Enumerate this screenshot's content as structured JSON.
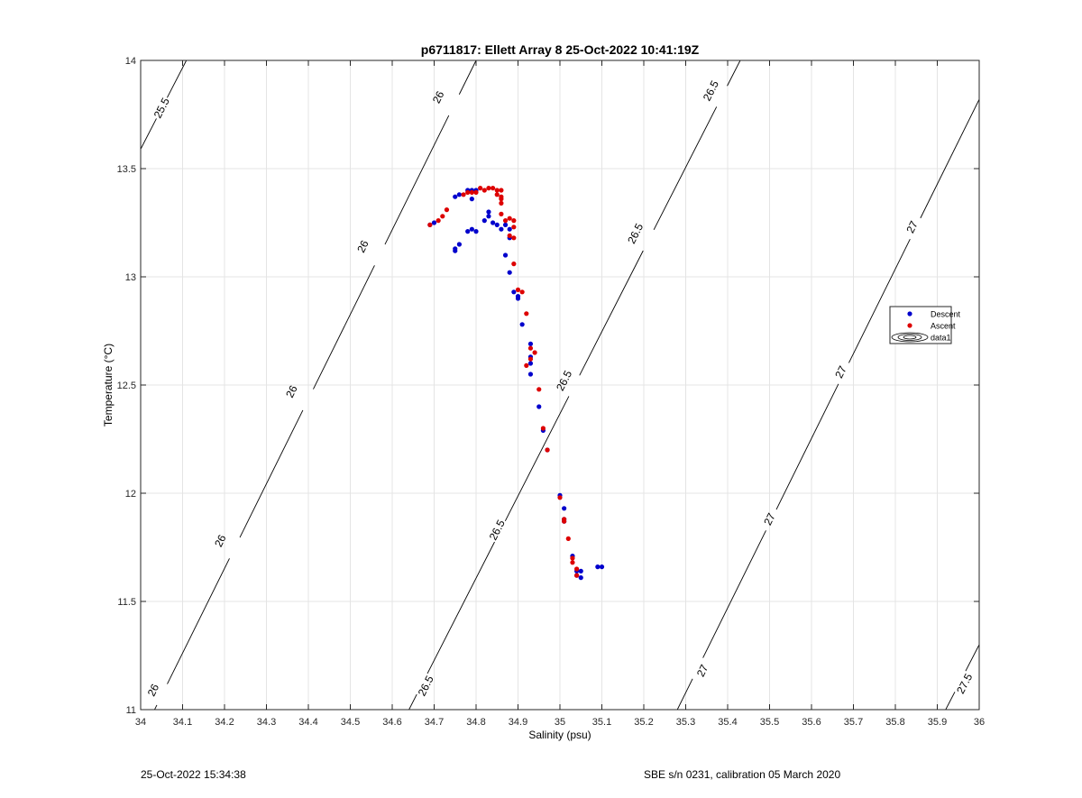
{
  "chart_data": {
    "type": "scatter",
    "title": "p6711817: Ellett Array 8 25-Oct-2022 10:41:19Z",
    "xlabel": "Salinity (psu)",
    "ylabel": "Temperature (°C)",
    "xlim": [
      34,
      36
    ],
    "ylim": [
      11,
      14
    ],
    "xticks": [
      34,
      34.1,
      34.2,
      34.3,
      34.4,
      34.5,
      34.6,
      34.7,
      34.8,
      34.9,
      35,
      35.1,
      35.2,
      35.3,
      35.4,
      35.5,
      35.6,
      35.7,
      35.8,
      35.9,
      36
    ],
    "yticks": [
      11,
      11.5,
      12,
      12.5,
      13,
      13.5,
      14
    ],
    "xtick_labels": [
      "34",
      "34.1",
      "34.2",
      "34.3",
      "34.4",
      "34.5",
      "34.6",
      "34.7",
      "34.8",
      "34.9",
      "35",
      "35.1",
      "35.2",
      "35.3",
      "35.4",
      "35.5",
      "35.6",
      "35.7",
      "35.8",
      "35.9",
      "36"
    ],
    "ytick_labels": [
      "11",
      "11.5",
      "12",
      "12.5",
      "13",
      "13.5",
      "14"
    ],
    "grid": true,
    "box": true,
    "legend_position": "right",
    "legend": [
      {
        "label": "Descent",
        "marker": "dot",
        "color": "#0000cc"
      },
      {
        "label": "Ascent",
        "marker": "dot",
        "color": "#dd0000"
      },
      {
        "label": "data1",
        "marker": "contour",
        "color": "#000000"
      }
    ],
    "contours": [
      {
        "level": "25.5",
        "points": [
          [
            34.0,
            13.59
          ],
          [
            34.109,
            14.0
          ]
        ],
        "labels": [
          {
            "s": 34.05,
            "t": 13.78
          }
        ]
      },
      {
        "level": "26",
        "points": [
          [
            34.0,
            10.87
          ],
          [
            34.8,
            14.0
          ]
        ],
        "labels": [
          {
            "s": 34.03,
            "t": 11.09
          },
          {
            "s": 34.19,
            "t": 11.78
          },
          {
            "s": 34.36,
            "t": 12.47
          },
          {
            "s": 34.53,
            "t": 13.14
          },
          {
            "s": 34.71,
            "t": 13.83
          }
        ]
      },
      {
        "level": "26.5",
        "points": [
          [
            34.64,
            11.0
          ],
          [
            35.43,
            14.0
          ]
        ],
        "labels": [
          {
            "s": 34.68,
            "t": 11.11
          },
          {
            "s": 34.85,
            "t": 11.83
          },
          {
            "s": 35.01,
            "t": 12.52
          },
          {
            "s": 35.18,
            "t": 13.2
          },
          {
            "s": 35.36,
            "t": 13.86
          }
        ]
      },
      {
        "level": "27",
        "points": [
          [
            35.28,
            11.0
          ],
          [
            36.0,
            13.82
          ]
        ],
        "labels": [
          {
            "s": 35.34,
            "t": 11.18
          },
          {
            "s": 35.5,
            "t": 11.88
          },
          {
            "s": 35.67,
            "t": 12.56
          },
          {
            "s": 35.84,
            "t": 13.23
          }
        ]
      },
      {
        "level": "27.5",
        "points": [
          [
            35.92,
            11.0
          ],
          [
            36.0,
            11.3
          ]
        ],
        "labels": [
          {
            "s": 35.965,
            "t": 11.12
          }
        ]
      }
    ],
    "series": [
      {
        "name": "Descent",
        "color": "#0000cc",
        "points": [
          [
            34.69,
            13.24
          ],
          [
            34.7,
            13.25
          ],
          [
            34.75,
            13.37
          ],
          [
            34.76,
            13.38
          ],
          [
            34.78,
            13.4
          ],
          [
            34.79,
            13.4
          ],
          [
            34.8,
            13.4
          ],
          [
            34.79,
            13.36
          ],
          [
            34.75,
            13.12
          ],
          [
            34.75,
            13.13
          ],
          [
            34.76,
            13.15
          ],
          [
            34.78,
            13.21
          ],
          [
            34.79,
            13.22
          ],
          [
            34.8,
            13.21
          ],
          [
            34.82,
            13.26
          ],
          [
            34.83,
            13.3
          ],
          [
            34.83,
            13.28
          ],
          [
            34.84,
            13.25
          ],
          [
            34.85,
            13.24
          ],
          [
            34.86,
            13.22
          ],
          [
            34.87,
            13.24
          ],
          [
            34.88,
            13.22
          ],
          [
            34.88,
            13.18
          ],
          [
            34.87,
            13.1
          ],
          [
            34.88,
            13.02
          ],
          [
            34.89,
            12.93
          ],
          [
            34.9,
            12.91
          ],
          [
            34.9,
            12.9
          ],
          [
            34.91,
            12.78
          ],
          [
            34.93,
            12.69
          ],
          [
            34.93,
            12.63
          ],
          [
            34.93,
            12.6
          ],
          [
            34.93,
            12.55
          ],
          [
            34.95,
            12.4
          ],
          [
            34.96,
            12.29
          ],
          [
            34.97,
            12.2
          ],
          [
            35.0,
            11.99
          ],
          [
            35.01,
            11.93
          ],
          [
            35.01,
            11.88
          ],
          [
            35.01,
            11.87
          ],
          [
            35.03,
            11.71
          ],
          [
            35.04,
            11.64
          ],
          [
            35.04,
            11.62
          ],
          [
            35.05,
            11.61
          ],
          [
            35.05,
            11.64
          ],
          [
            35.09,
            11.66
          ],
          [
            35.1,
            11.66
          ]
        ]
      },
      {
        "name": "Ascent",
        "color": "#dd0000",
        "points": [
          [
            34.69,
            13.24
          ],
          [
            34.71,
            13.26
          ],
          [
            34.72,
            13.28
          ],
          [
            34.73,
            13.31
          ],
          [
            34.77,
            13.38
          ],
          [
            34.78,
            13.39
          ],
          [
            34.79,
            13.39
          ],
          [
            34.8,
            13.39
          ],
          [
            34.81,
            13.41
          ],
          [
            34.82,
            13.4
          ],
          [
            34.83,
            13.41
          ],
          [
            34.84,
            13.41
          ],
          [
            34.85,
            13.4
          ],
          [
            34.85,
            13.38
          ],
          [
            34.86,
            13.4
          ],
          [
            34.86,
            13.37
          ],
          [
            34.86,
            13.36
          ],
          [
            34.86,
            13.34
          ],
          [
            34.86,
            13.29
          ],
          [
            34.87,
            13.26
          ],
          [
            34.88,
            13.27
          ],
          [
            34.89,
            13.26
          ],
          [
            34.89,
            13.23
          ],
          [
            34.88,
            13.19
          ],
          [
            34.89,
            13.18
          ],
          [
            34.89,
            13.06
          ],
          [
            34.9,
            12.94
          ],
          [
            34.91,
            12.93
          ],
          [
            34.92,
            12.83
          ],
          [
            34.93,
            12.67
          ],
          [
            34.93,
            12.62
          ],
          [
            34.92,
            12.59
          ],
          [
            34.94,
            12.65
          ],
          [
            34.95,
            12.48
          ],
          [
            34.96,
            12.3
          ],
          [
            34.97,
            12.2
          ],
          [
            35.0,
            11.98
          ],
          [
            35.01,
            11.87
          ],
          [
            35.01,
            11.88
          ],
          [
            35.02,
            11.79
          ],
          [
            35.03,
            11.7
          ],
          [
            35.03,
            11.68
          ],
          [
            35.04,
            11.65
          ],
          [
            35.04,
            11.62
          ]
        ]
      }
    ]
  },
  "footer": {
    "left": "25-Oct-2022 15:34:38",
    "right": "SBE s/n 0231, calibration 05 March 2020"
  }
}
